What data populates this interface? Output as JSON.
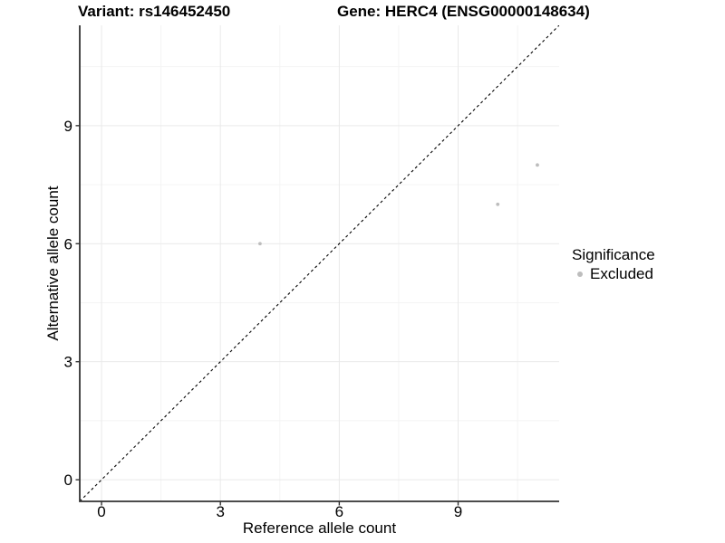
{
  "chart_data": {
    "type": "scatter",
    "titles": [
      "Variant: rs146452450",
      "Gene: HERC4 (ENSG00000148634)"
    ],
    "xlabel": "Reference allele count",
    "ylabel": "Alternative allele count",
    "xlim": [
      -0.55,
      11.55
    ],
    "ylim": [
      -0.55,
      11.55
    ],
    "xticks": [
      0,
      3,
      6,
      9
    ],
    "yticks": [
      0,
      3,
      6,
      9
    ],
    "minor_gridlines": [
      1.5,
      4.5,
      7.5,
      10.5
    ],
    "grid": "major+minor",
    "series": [
      {
        "name": "Excluded",
        "color": "#bdbdbd",
        "points": [
          {
            "x": 4,
            "y": 6
          },
          {
            "x": 10,
            "y": 7
          },
          {
            "x": 11,
            "y": 8
          }
        ]
      }
    ],
    "identity_line": {
      "equation": "y = x",
      "style": "dashed",
      "color": "#000000"
    },
    "legend": {
      "title": "Significance",
      "position": "right",
      "items": [
        {
          "label": "Excluded",
          "color": "#bdbdbd"
        }
      ]
    }
  },
  "colors": {
    "background": "#ffffff",
    "axis_line": "#333333",
    "tick_mark": "#333333",
    "tick_label": "#000000",
    "grid_major": "#e9e9e9",
    "grid_minor": "#f4f4f4",
    "point": "#bdbdbd"
  }
}
